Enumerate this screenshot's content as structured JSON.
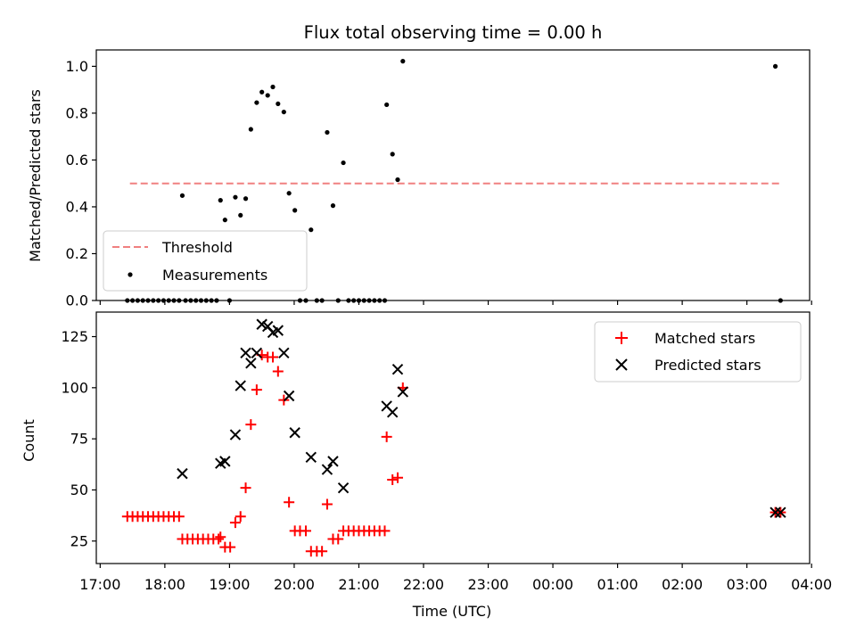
{
  "chart_data": [
    {
      "type": "scatter",
      "title": "Flux total observing time = 0.00 h",
      "xlabel": "",
      "ylabel": "Matched/Predicted stars",
      "ylim": [
        0,
        1.07
      ],
      "yticks": [
        "0.0",
        "0.2",
        "0.4",
        "0.6",
        "0.8",
        "1.0"
      ],
      "ytick_values": [
        0,
        0.2,
        0.4,
        0.6,
        0.8,
        1.0
      ],
      "legend": {
        "placement": "lower-left",
        "entries": [
          "Threshold",
          "Measurements"
        ]
      },
      "threshold": {
        "name": "Threshold",
        "value": 0.5,
        "x_start": 17.46,
        "x_end": 27.52,
        "color": "#f08080",
        "style": "dashed"
      },
      "series": [
        {
          "name": "Measurements",
          "marker": "dot",
          "color": "#000000",
          "points": [
            [
              17.42,
              0
            ],
            [
              17.5,
              0
            ],
            [
              17.58,
              0
            ],
            [
              17.66,
              0
            ],
            [
              17.74,
              0
            ],
            [
              17.82,
              0
            ],
            [
              17.9,
              0
            ],
            [
              17.98,
              0
            ],
            [
              18.06,
              0
            ],
            [
              18.14,
              0
            ],
            [
              18.22,
              0
            ],
            [
              18.32,
              0
            ],
            [
              18.4,
              0
            ],
            [
              18.48,
              0
            ],
            [
              18.56,
              0
            ],
            [
              18.64,
              0
            ],
            [
              18.72,
              0
            ],
            [
              18.8,
              0
            ],
            [
              19.0,
              0
            ],
            [
              18.27,
              0.448
            ],
            [
              18.86,
              0.428
            ],
            [
              18.93,
              0.344
            ],
            [
              19.09,
              0.441
            ],
            [
              19.17,
              0.364
            ],
            [
              19.25,
              0.435
            ],
            [
              19.33,
              0.731
            ],
            [
              19.42,
              0.845
            ],
            [
              19.5,
              0.89
            ],
            [
              19.59,
              0.876
            ],
            [
              19.67,
              0.912
            ],
            [
              19.75,
              0.84
            ],
            [
              19.84,
              0.805
            ],
            [
              19.92,
              0.458
            ],
            [
              20.01,
              0.385
            ],
            [
              20.09,
              0
            ],
            [
              20.18,
              0
            ],
            [
              20.26,
              0.302
            ],
            [
              20.35,
              0
            ],
            [
              20.43,
              0
            ],
            [
              20.51,
              0.718
            ],
            [
              20.6,
              0.405
            ],
            [
              20.68,
              0
            ],
            [
              20.76,
              0.588
            ],
            [
              20.84,
              0
            ],
            [
              20.92,
              0
            ],
            [
              21.0,
              0
            ],
            [
              21.08,
              0
            ],
            [
              21.16,
              0
            ],
            [
              21.24,
              0
            ],
            [
              21.32,
              0
            ],
            [
              21.4,
              0
            ],
            [
              21.43,
              0.836
            ],
            [
              21.52,
              0.625
            ],
            [
              21.6,
              0.516
            ],
            [
              21.68,
              1.022
            ],
            [
              27.44,
              1.0
            ],
            [
              27.52,
              0
            ]
          ]
        }
      ]
    },
    {
      "type": "scatter",
      "title": "",
      "xlabel": "Time (UTC)",
      "ylabel": "Count",
      "ylim": [
        14,
        137
      ],
      "yticks": [
        "25",
        "50",
        "75",
        "100",
        "125"
      ],
      "ytick_values": [
        25,
        50,
        75,
        100,
        125
      ],
      "xticks": [
        "17:00",
        "18:00",
        "19:00",
        "20:00",
        "21:00",
        "22:00",
        "23:00",
        "00:00",
        "01:00",
        "02:00",
        "03:00",
        "04:00"
      ],
      "xtick_values": [
        17,
        18,
        19,
        20,
        21,
        22,
        23,
        24,
        25,
        26,
        27,
        28
      ],
      "xlim": [
        16.94,
        27.97
      ],
      "legend": {
        "placement": "top-right",
        "entries": [
          "Matched stars",
          "Predicted stars"
        ]
      },
      "series": [
        {
          "name": "Matched stars",
          "marker": "plus",
          "color": "#ff0000",
          "points": [
            [
              17.42,
              37
            ],
            [
              17.5,
              37
            ],
            [
              17.58,
              37
            ],
            [
              17.66,
              37
            ],
            [
              17.74,
              37
            ],
            [
              17.82,
              37
            ],
            [
              17.9,
              37
            ],
            [
              17.98,
              37
            ],
            [
              18.06,
              37
            ],
            [
              18.14,
              37
            ],
            [
              18.22,
              37
            ],
            [
              18.27,
              26
            ],
            [
              18.35,
              26
            ],
            [
              18.43,
              26
            ],
            [
              18.51,
              26
            ],
            [
              18.59,
              26
            ],
            [
              18.67,
              26
            ],
            [
              18.75,
              26
            ],
            [
              18.83,
              26
            ],
            [
              18.86,
              27
            ],
            [
              18.93,
              22
            ],
            [
              19.01,
              22
            ],
            [
              19.09,
              34
            ],
            [
              19.17,
              37
            ],
            [
              19.25,
              51
            ],
            [
              19.33,
              82
            ],
            [
              19.42,
              99
            ],
            [
              19.5,
              116
            ],
            [
              19.59,
              115
            ],
            [
              19.67,
              115
            ],
            [
              19.75,
              108
            ],
            [
              19.84,
              94
            ],
            [
              19.92,
              44
            ],
            [
              20.01,
              30
            ],
            [
              20.09,
              30
            ],
            [
              20.18,
              30
            ],
            [
              20.26,
              20
            ],
            [
              20.35,
              20
            ],
            [
              20.43,
              20
            ],
            [
              20.51,
              43
            ],
            [
              20.6,
              26
            ],
            [
              20.68,
              26
            ],
            [
              20.76,
              30
            ],
            [
              20.84,
              30
            ],
            [
              20.92,
              30
            ],
            [
              21.0,
              30
            ],
            [
              21.08,
              30
            ],
            [
              21.16,
              30
            ],
            [
              21.24,
              30
            ],
            [
              21.32,
              30
            ],
            [
              21.4,
              30
            ],
            [
              21.43,
              76
            ],
            [
              21.52,
              55
            ],
            [
              21.6,
              56
            ],
            [
              21.68,
              100
            ],
            [
              27.44,
              39
            ],
            [
              27.52,
              39
            ]
          ]
        },
        {
          "name": "Predicted stars",
          "marker": "x",
          "color": "#000000",
          "points": [
            [
              18.27,
              58
            ],
            [
              18.86,
              63
            ],
            [
              18.93,
              64
            ],
            [
              19.09,
              77
            ],
            [
              19.17,
              101
            ],
            [
              19.25,
              117
            ],
            [
              19.33,
              112
            ],
            [
              19.42,
              117
            ],
            [
              19.5,
              131
            ],
            [
              19.59,
              130
            ],
            [
              19.67,
              127
            ],
            [
              19.75,
              128
            ],
            [
              19.84,
              117
            ],
            [
              19.92,
              96
            ],
            [
              20.01,
              78
            ],
            [
              20.26,
              66
            ],
            [
              20.51,
              60
            ],
            [
              20.6,
              64
            ],
            [
              20.76,
              51
            ],
            [
              21.43,
              91
            ],
            [
              21.52,
              88
            ],
            [
              21.6,
              109
            ],
            [
              21.68,
              98
            ],
            [
              27.44,
              39
            ],
            [
              27.52,
              39
            ]
          ]
        }
      ]
    }
  ]
}
